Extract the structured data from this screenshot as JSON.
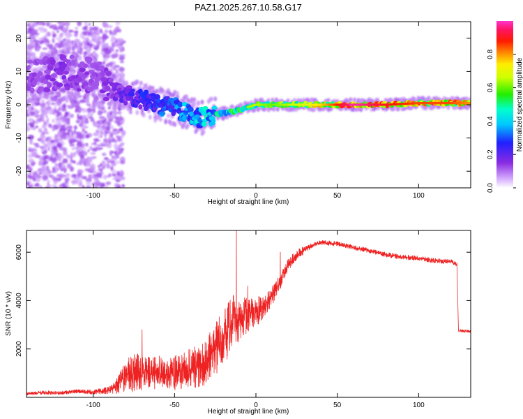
{
  "chart_data": [
    {
      "type": "heatmap",
      "title": "PAZ1.2025.267.10.58.G17",
      "xlabel": "Height of straight line (km)",
      "ylabel": "Frequency (Hz)",
      "xlim": [
        -141,
        132
      ],
      "ylim": [
        -25,
        25
      ],
      "x_ticks": [
        -100,
        -50,
        0,
        50,
        100
      ],
      "y_ticks": [
        -20,
        -10,
        0,
        10,
        20
      ],
      "colorbar": {
        "label": "Normalized spectral amplitude",
        "range": [
          0,
          1
        ],
        "ticks": [
          "0.0",
          "0.2",
          "0.4",
          "0.6",
          "0.8"
        ]
      },
      "ridge": {
        "x": [
          -141,
          -120,
          -100,
          -90,
          -80,
          -70,
          -60,
          -50,
          -40,
          -35,
          -30,
          -25,
          -20,
          -10,
          0,
          10,
          20,
          40,
          60,
          80,
          100,
          120,
          132
        ],
        "y": [
          8,
          10,
          9,
          5,
          3,
          1.5,
          0,
          -1,
          -3,
          -4,
          -3.5,
          -3,
          -2.5,
          -1.5,
          0,
          0,
          0,
          0,
          0,
          0,
          0.5,
          0.5,
          0.5
        ],
        "amplitude": [
          0.12,
          0.15,
          0.13,
          0.15,
          0.22,
          0.25,
          0.3,
          0.35,
          0.38,
          0.4,
          0.42,
          0.45,
          0.5,
          0.55,
          0.6,
          0.55,
          0.6,
          0.7,
          0.95,
          0.85,
          0.8,
          0.8,
          0.75
        ]
      },
      "grid": false
    },
    {
      "type": "line",
      "xlabel": "Height of straight line (km)",
      "ylabel": "SNR (10 * v/v)",
      "xlim": [
        -141,
        132
      ],
      "ylim": [
        0,
        6900
      ],
      "x_ticks": [
        -100,
        -50,
        0,
        50,
        100
      ],
      "y_ticks": [
        2000,
        4000,
        6000
      ],
      "color": "#ee2222",
      "series": [
        {
          "x": [
            -141,
            -130,
            -120,
            -110,
            -100,
            -90,
            -85,
            -80,
            -75,
            -70,
            -65,
            -60,
            -55,
            -50,
            -45,
            -40,
            -35,
            -30,
            -25,
            -20,
            -15,
            -10,
            -5,
            0,
            5,
            10,
            15,
            20,
            25,
            30,
            35,
            40,
            50,
            60,
            70,
            80,
            90,
            100,
            110,
            120,
            123.5,
            124.5,
            132
          ],
          "y": [
            150,
            200,
            180,
            250,
            220,
            300,
            500,
            900,
            1000,
            1100,
            1000,
            1000,
            950,
            1000,
            1100,
            1200,
            1300,
            1500,
            2000,
            2500,
            3000,
            3300,
            3400,
            3500,
            3800,
            4200,
            4800,
            5500,
            5900,
            6100,
            6300,
            6400,
            6350,
            6200,
            6050,
            5900,
            5800,
            5750,
            5650,
            5600,
            5500,
            2750,
            2720
          ],
          "noise": [
            60,
            80,
            70,
            80,
            90,
            150,
            350,
            650,
            800,
            800,
            650,
            750,
            650,
            750,
            750,
            850,
            900,
            1000,
            1100,
            1100,
            1200,
            1000,
            700,
            600,
            500,
            400,
            300,
            250,
            200,
            150,
            100,
            100,
            100,
            100,
            100,
            100,
            100,
            100,
            100,
            100,
            100,
            60,
            60
          ],
          "spikes": [
            {
              "x": -70,
              "y": 2800
            },
            {
              "x": -12,
              "y": 6900
            },
            {
              "x": -5,
              "y": 4600
            },
            {
              "x": 15,
              "y": 6000
            }
          ]
        }
      ],
      "grid": false
    }
  ]
}
